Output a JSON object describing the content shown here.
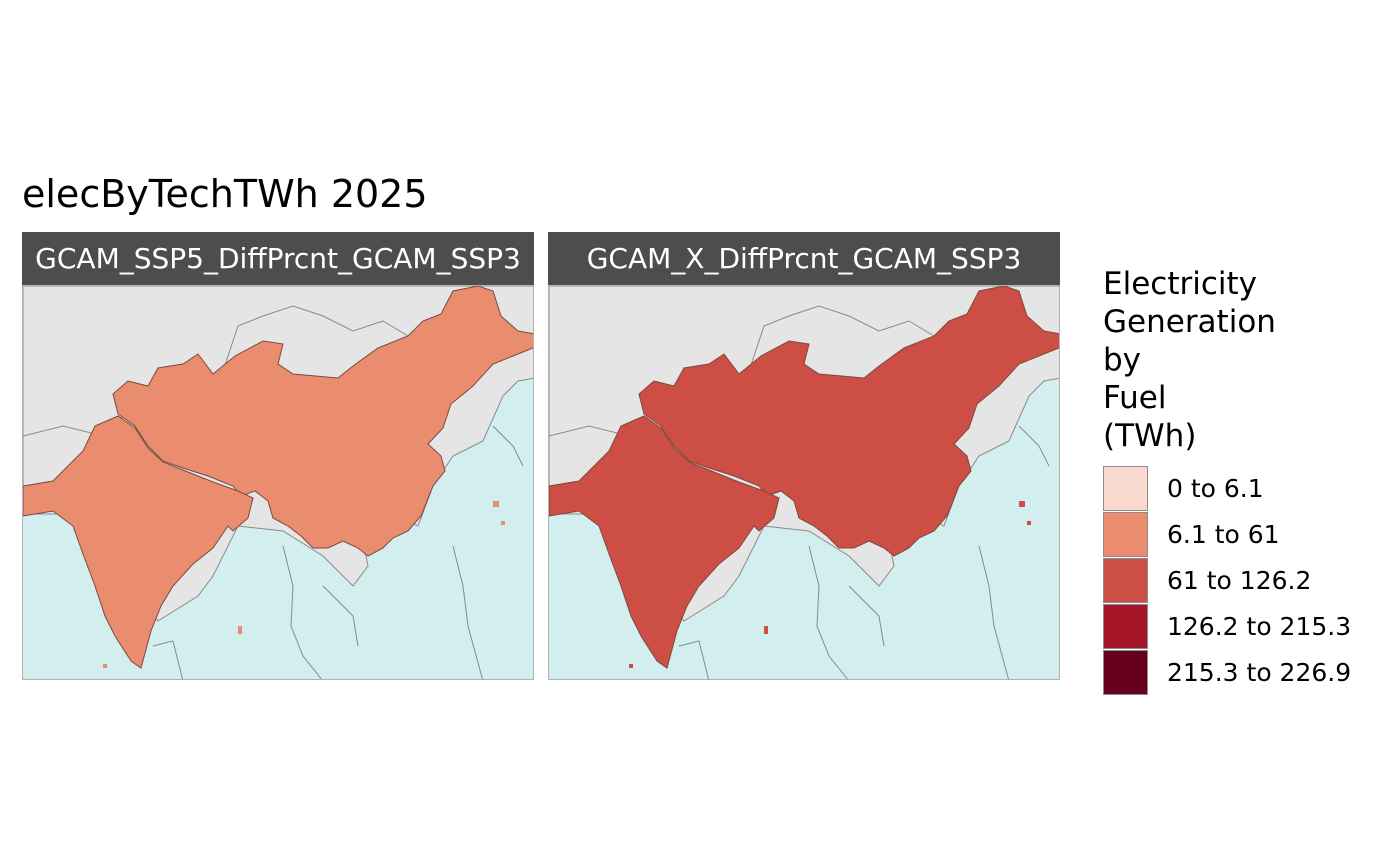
{
  "title": "elecByTechTWh 2025",
  "colors": {
    "land": "#e5e5e5",
    "ocean": "#d2eeee",
    "border": "#8a8a8a"
  },
  "panels": [
    {
      "label": "GCAM_SSP5_DiffPrcnt_GCAM_SSP3",
      "fill": "#ea8d6e"
    },
    {
      "label": "GCAM_X_DiffPrcnt_GCAM_SSP3",
      "fill": "#cd4e44"
    }
  ],
  "legend": {
    "title_lines": [
      "Electricity",
      "Generation",
      "by",
      "Fuel",
      "(TWh)"
    ],
    "items": [
      {
        "label": "0 to 6.1",
        "color": "#f9d9cd"
      },
      {
        "label": "6.1 to 61",
        "color": "#ea8d6e"
      },
      {
        "label": "61 to 126.2",
        "color": "#cd4e44"
      },
      {
        "label": "126.2 to 215.3",
        "color": "#a51528"
      },
      {
        "label": "215.3 to 226.9",
        "color": "#67001f"
      }
    ]
  }
}
